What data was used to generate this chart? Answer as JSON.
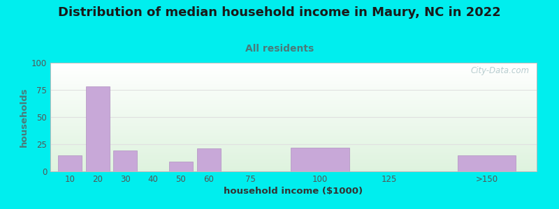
{
  "title": "Distribution of median household income in Maury, NC in 2022",
  "subtitle": "All residents",
  "xlabel": "household income ($1000)",
  "ylabel": "households",
  "title_fontsize": 13,
  "subtitle_fontsize": 10,
  "xlabel_fontsize": 9.5,
  "ylabel_fontsize": 9.5,
  "background_color": "#00EEEE",
  "bar_color": "#c8a8d8",
  "bar_edge_color": "#b090c0",
  "ylim": [
    0,
    100
  ],
  "yticks": [
    0,
    25,
    50,
    75,
    100
  ],
  "categories": [
    "10",
    "20",
    "30",
    "40",
    "50",
    "60",
    "75",
    "100",
    "125",
    ">150"
  ],
  "values": [
    15,
    78,
    19,
    0,
    9,
    21,
    0,
    22,
    0,
    15
  ],
  "x_numeric": [
    10,
    20,
    30,
    40,
    50,
    60,
    75,
    100,
    125,
    160
  ],
  "bar_widths": [
    8.5,
    8.5,
    8.5,
    8.5,
    8.5,
    8.5,
    13,
    21,
    21,
    21
  ],
  "xlim": [
    3,
    178
  ],
  "watermark": "City-Data.com",
  "title_color": "#1a1a1a",
  "subtitle_color": "#4a7a7a",
  "ylabel_color": "#4a7a7a",
  "xlabel_color": "#333333",
  "ytick_color": "#555555",
  "xtick_color": "#555555",
  "grid_color": "#e0e0e0"
}
